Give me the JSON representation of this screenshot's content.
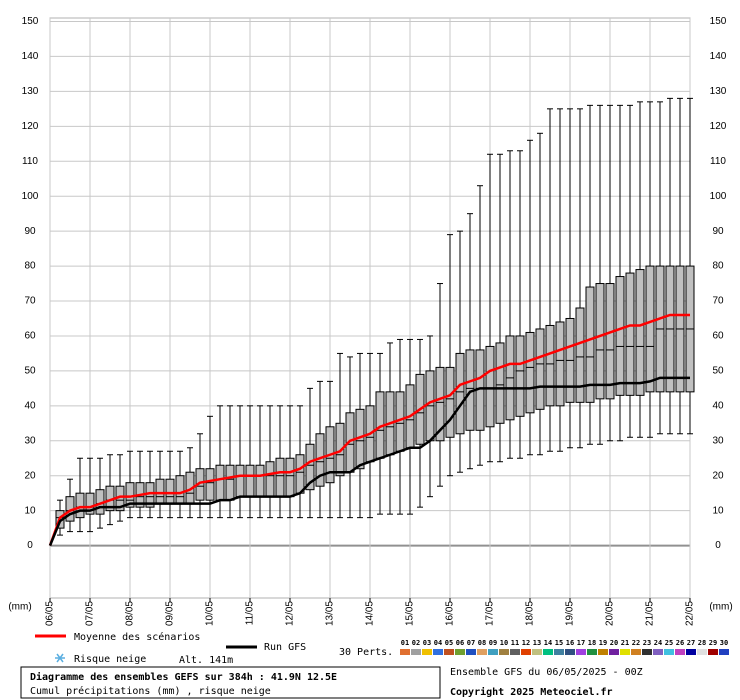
{
  "chart_data": {
    "type": "box",
    "title": "Diagramme des ensembles GEFS sur 384h : 41.9N 12.5E",
    "subtitle": "Cumul précipitations (mm) , risque neige",
    "run_info": "Ensemble GFS du 06/05/2025 - 00Z",
    "copyright": "Copyright 2025 Meteociel.fr",
    "y_unit": "(mm)",
    "snow_label": "Risque neige",
    "altitude": "Alt. 141m",
    "members_label": "30 Perts.",
    "ylim": [
      -15,
      151
    ],
    "yticks": [
      0,
      10,
      20,
      30,
      40,
      50,
      60,
      70,
      80,
      90,
      100,
      110,
      120,
      130,
      140,
      150
    ],
    "xlim": [
      0,
      16
    ],
    "xticks": [
      {
        "value": 0,
        "label": "06/05"
      },
      {
        "value": 1,
        "label": "07/05"
      },
      {
        "value": 2,
        "label": "08/05"
      },
      {
        "value": 3,
        "label": "09/05"
      },
      {
        "value": 4,
        "label": "10/05"
      },
      {
        "value": 5,
        "label": "11/05"
      },
      {
        "value": 6,
        "label": "12/05"
      },
      {
        "value": 7,
        "label": "13/05"
      },
      {
        "value": 8,
        "label": "14/05"
      },
      {
        "value": 9,
        "label": "15/05"
      },
      {
        "value": 10,
        "label": "16/05"
      },
      {
        "value": 11,
        "label": "17/05"
      },
      {
        "value": 12,
        "label": "18/05"
      },
      {
        "value": 13,
        "label": "19/05"
      },
      {
        "value": 14,
        "label": "20/05"
      },
      {
        "value": 15,
        "label": "21/05"
      },
      {
        "value": 16,
        "label": "22/05"
      }
    ],
    "grid": true,
    "x": [
      0,
      0.25,
      0.5,
      0.75,
      1,
      1.25,
      1.5,
      1.75,
      2,
      2.25,
      2.5,
      2.75,
      3,
      3.25,
      3.5,
      3.75,
      4,
      4.25,
      4.5,
      4.75,
      5,
      5.25,
      5.5,
      5.75,
      6,
      6.25,
      6.5,
      6.75,
      7,
      7.25,
      7.5,
      7.75,
      8,
      8.25,
      8.5,
      8.75,
      9,
      9.25,
      9.5,
      9.75,
      10,
      10.25,
      10.5,
      10.75,
      11,
      11.25,
      11.5,
      11.75,
      12,
      12.25,
      12.5,
      12.75,
      13,
      13.25,
      13.5,
      13.75,
      14,
      14.25,
      14.5,
      14.75,
      15,
      15.25,
      15.5,
      15.75,
      16
    ],
    "box_color": "#c0c0c0",
    "boxes": {
      "min": [
        null,
        3,
        4,
        4,
        4,
        5,
        6,
        7,
        8,
        8,
        8,
        8,
        8,
        8,
        8,
        8,
        8,
        8,
        8,
        8,
        8,
        8,
        8,
        8,
        8,
        8,
        8,
        8,
        8,
        8,
        8,
        8,
        8,
        9,
        9,
        9,
        9,
        11,
        14,
        17,
        20,
        21,
        22,
        23,
        24,
        24,
        25,
        25,
        26,
        26,
        27,
        27,
        28,
        28,
        29,
        29,
        30,
        30,
        31,
        31,
        31,
        32,
        32,
        32,
        32
      ],
      "q1": [
        null,
        5,
        7,
        8,
        9,
        9,
        10,
        10,
        11,
        11,
        11,
        12,
        12,
        12,
        12,
        13,
        13,
        13,
        13,
        14,
        14,
        14,
        14,
        14,
        14,
        15,
        16,
        17,
        18,
        20,
        21,
        22,
        24,
        25,
        26,
        27,
        28,
        29,
        30,
        30,
        31,
        32,
        33,
        33,
        34,
        35,
        36,
        37,
        38,
        39,
        40,
        40,
        41,
        41,
        41,
        42,
        42,
        43,
        43,
        43,
        44,
        44,
        44,
        44,
        44
      ],
      "median": [
        null,
        8,
        10,
        11,
        11,
        12,
        13,
        13,
        13,
        14,
        14,
        14,
        14,
        14,
        15,
        17,
        18,
        19,
        19,
        20,
        20,
        20,
        20,
        20,
        20,
        21,
        23,
        24,
        25,
        26,
        29,
        30,
        31,
        33,
        34,
        35,
        36,
        38,
        40,
        41,
        42,
        44,
        45,
        45,
        45,
        46,
        48,
        50,
        51,
        52,
        52,
        53,
        53,
        54,
        54,
        56,
        56,
        57,
        57,
        57,
        57,
        62,
        62,
        62,
        62
      ],
      "q3": [
        null,
        10,
        14,
        15,
        15,
        16,
        17,
        17,
        18,
        18,
        18,
        19,
        19,
        20,
        21,
        22,
        22,
        23,
        23,
        23,
        23,
        23,
        24,
        25,
        25,
        26,
        29,
        32,
        34,
        35,
        38,
        39,
        40,
        44,
        44,
        44,
        46,
        49,
        50,
        51,
        51,
        55,
        56,
        56,
        57,
        58,
        60,
        60,
        61,
        62,
        63,
        64,
        65,
        68,
        74,
        75,
        75,
        77,
        78,
        79,
        80,
        80,
        80,
        80,
        80
      ],
      "max": [
        null,
        13,
        19,
        25,
        25,
        25,
        26,
        26,
        27,
        27,
        27,
        27,
        27,
        27,
        28,
        32,
        37,
        40,
        40,
        40,
        40,
        40,
        40,
        40,
        40,
        40,
        45,
        47,
        47,
        55,
        54,
        55,
        55,
        55,
        58,
        59,
        59,
        59,
        60,
        75,
        89,
        90,
        95,
        103,
        112,
        112,
        113,
        113,
        116,
        118,
        125,
        125,
        125,
        125,
        126,
        126,
        126,
        126,
        126,
        127,
        127,
        127,
        128,
        128,
        128
      ]
    },
    "series": [
      {
        "name": "Moyenne des scénarios",
        "color": "#ff0000",
        "values": [
          0,
          8,
          10,
          11,
          11,
          12,
          13,
          14,
          14,
          14.5,
          15,
          15,
          15,
          15,
          16,
          18,
          18.5,
          19,
          19.5,
          20,
          20,
          20,
          20.5,
          21,
          21,
          22,
          24,
          25,
          26,
          27,
          30,
          31,
          32,
          34,
          35,
          36,
          37,
          39,
          41,
          42,
          43,
          46,
          47,
          48,
          50,
          51,
          52,
          52,
          53,
          54,
          55,
          56,
          57,
          58,
          59,
          60,
          61,
          62,
          63,
          63,
          64,
          65,
          66,
          66,
          66
        ]
      },
      {
        "name": "Run GFS",
        "color": "#000000",
        "values": [
          0,
          7,
          9,
          10,
          10,
          11,
          11,
          11,
          12,
          12,
          12,
          12,
          12,
          12,
          12,
          12,
          12,
          13,
          13,
          14,
          14,
          14,
          14,
          14,
          14,
          15,
          18,
          20,
          21,
          21,
          21,
          23,
          24,
          25,
          26,
          27,
          28,
          28,
          30,
          33,
          36,
          40,
          44,
          45,
          45,
          45,
          45,
          45,
          45,
          45.5,
          45.5,
          45.5,
          45.5,
          45.5,
          46,
          46,
          46,
          46.5,
          46.5,
          46.5,
          47,
          48,
          48,
          48,
          48
        ]
      }
    ],
    "members": [
      {
        "label": "01",
        "color": "#e07030"
      },
      {
        "label": "02",
        "color": "#a0a0a0"
      },
      {
        "label": "03",
        "color": "#f0c000"
      },
      {
        "label": "04",
        "color": "#3070e0"
      },
      {
        "label": "05",
        "color": "#c05020"
      },
      {
        "label": "06",
        "color": "#70a030"
      },
      {
        "label": "07",
        "color": "#2050c0"
      },
      {
        "label": "08",
        "color": "#e0a060"
      },
      {
        "label": "09",
        "color": "#40a0c0"
      },
      {
        "label": "10",
        "color": "#a08040"
      },
      {
        "label": "11",
        "color": "#606060"
      },
      {
        "label": "12",
        "color": "#e04000"
      },
      {
        "label": "13",
        "color": "#c0c080"
      },
      {
        "label": "14",
        "color": "#00c080"
      },
      {
        "label": "15",
        "color": "#4080a0"
      },
      {
        "label": "16",
        "color": "#305080"
      },
      {
        "label": "17",
        "color": "#a040e0"
      },
      {
        "label": "18",
        "color": "#209040"
      },
      {
        "label": "19",
        "color": "#c08000"
      },
      {
        "label": "20",
        "color": "#7020a0"
      },
      {
        "label": "21",
        "color": "#e0e000"
      },
      {
        "label": "22",
        "color": "#d08020"
      },
      {
        "label": "23",
        "color": "#303030"
      },
      {
        "label": "24",
        "color": "#8060c0"
      },
      {
        "label": "25",
        "color": "#40c0e0"
      },
      {
        "label": "26",
        "color": "#c040c0"
      },
      {
        "label": "27",
        "color": "#0000a0"
      },
      {
        "label": "28",
        "color": "#e0e0e0"
      },
      {
        "label": "29",
        "color": "#a00000"
      },
      {
        "label": "30",
        "color": "#2040c0"
      }
    ]
  }
}
